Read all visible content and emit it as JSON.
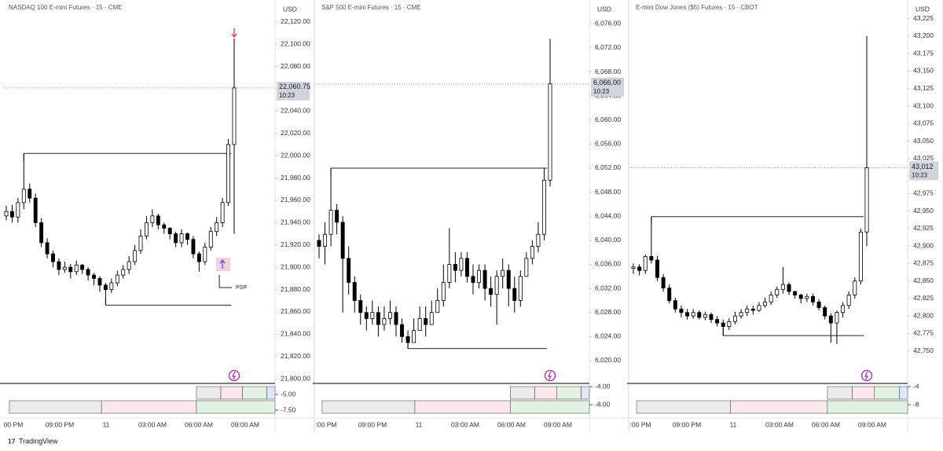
{
  "chart_data": [
    {
      "type": "candlestick",
      "title": "NASDAQ 100 E-mini Futures · 15 · CME",
      "currency": "USD",
      "ylim": [
        21798,
        22136
      ],
      "yticks": [
        {
          "value": 22120,
          "label": "22,120.00"
        },
        {
          "value": 22100,
          "label": "22,100.00"
        },
        {
          "value": 22080,
          "label": "22,080.00"
        },
        {
          "value": 22060,
          "label": "22,060.00"
        },
        {
          "value": 22040,
          "label": "22,040.00"
        },
        {
          "value": 22020,
          "label": "22,020.00"
        },
        {
          "value": 22000,
          "label": "22,000.00"
        },
        {
          "value": 21980,
          "label": "21,980.00"
        },
        {
          "value": 21960,
          "label": "21,960.00"
        },
        {
          "value": 21940,
          "label": "21,940.00"
        },
        {
          "value": 21920,
          "label": "21,920.00"
        },
        {
          "value": 21900,
          "label": "21,900.00"
        },
        {
          "value": 21880,
          "label": "21,880.00"
        },
        {
          "value": 21860,
          "label": "21,860.00"
        },
        {
          "value": 21840,
          "label": "21,840.00"
        },
        {
          "value": 21820,
          "label": "21,820.00"
        },
        {
          "value": 21800,
          "label": "21,800.00"
        }
      ],
      "open": [
        21946,
        21950,
        21945,
        21958,
        21970,
        21962,
        21940,
        21922,
        21912,
        21905,
        21898,
        21900,
        21896,
        21902,
        21898,
        21893,
        21890,
        21884,
        21880,
        21886,
        21893,
        21898,
        21905,
        21915,
        21928,
        21940,
        21946,
        21938,
        21935,
        21930,
        21922,
        21930,
        21925,
        21912,
        21905,
        21918,
        21932,
        21940,
        21958,
        22010
      ],
      "high": [
        21955,
        21956,
        21962,
        22002,
        21975,
        21966,
        21944,
        21926,
        21915,
        21908,
        21905,
        21903,
        21906,
        21903,
        21900,
        21895,
        21892,
        21886,
        21890,
        21897,
        21902,
        21910,
        21920,
        21934,
        21946,
        21952,
        21948,
        21940,
        21936,
        21932,
        21934,
        21931,
        21928,
        21914,
        21922,
        21936,
        21945,
        21962,
        22015,
        22105
      ],
      "low": [
        21942,
        21940,
        21940,
        21952,
        21958,
        21936,
        21918,
        21908,
        21900,
        21893,
        21895,
        21890,
        21893,
        21894,
        21888,
        21884,
        21878,
        21866,
        21877,
        21883,
        21890,
        21894,
        21902,
        21912,
        21925,
        21936,
        21934,
        21930,
        21925,
        21918,
        21918,
        21920,
        21908,
        21896,
        21902,
        21915,
        21928,
        21936,
        21955,
        21930
      ],
      "close": [
        21950,
        21945,
        21958,
        21970,
        21962,
        21940,
        21922,
        21912,
        21905,
        21898,
        21900,
        21896,
        21902,
        21898,
        21893,
        21890,
        21884,
        21880,
        21886,
        21893,
        21898,
        21905,
        21915,
        21928,
        21940,
        21946,
        21938,
        21935,
        21930,
        21922,
        21930,
        21925,
        21912,
        21905,
        21918,
        21932,
        21940,
        21958,
        22010,
        22060.75
      ],
      "levels": [
        22002,
        21866
      ],
      "last_price": {
        "value": 22060.75,
        "label": "22,060.75"
      },
      "countdown": "10:23",
      "annotation": "PSP",
      "sub_ylim": [
        -3.25,
        -8.5
      ],
      "sub_yticks": [
        {
          "value": -5,
          "label": "-5.00"
        },
        {
          "value": -7.5,
          "label": "-7.50"
        }
      ],
      "time_labels": [
        "00 PM",
        "09:00 PM",
        "11",
        "03:00 AM",
        "06:00 AM",
        "09:00 AM"
      ]
    },
    {
      "type": "candlestick",
      "title": "S&P 500 E-mini Futures · 15 · CME",
      "currency": "USD",
      "ylim": [
        6016.6,
        6079.3
      ],
      "yticks": [
        {
          "value": 6076,
          "label": "6,076.00"
        },
        {
          "value": 6072,
          "label": "6,072.00"
        },
        {
          "value": 6068,
          "label": "6,068.00"
        },
        {
          "value": 6064,
          "label": "6,064.00"
        },
        {
          "value": 6060,
          "label": "6,060.00"
        },
        {
          "value": 6056,
          "label": "6,056.00"
        },
        {
          "value": 6052,
          "label": "6,052.00"
        },
        {
          "value": 6048,
          "label": "6,048.00"
        },
        {
          "value": 6044,
          "label": "6,044.00"
        },
        {
          "value": 6040,
          "label": "6,040.00"
        },
        {
          "value": 6036,
          "label": "6,036.00"
        },
        {
          "value": 6032,
          "label": "6,032.00"
        },
        {
          "value": 6028,
          "label": "6,028.00"
        },
        {
          "value": 6024,
          "label": "6,024.00"
        },
        {
          "value": 6020,
          "label": "6,020.00"
        }
      ],
      "open": [
        6040,
        6039,
        6041,
        6045,
        6043,
        6037,
        6033,
        6030,
        6028,
        6027,
        6028,
        6026,
        6027,
        6028,
        6026,
        6024,
        6023,
        6025,
        6027,
        6026,
        6028,
        6030,
        6033,
        6036,
        6035,
        6037,
        6034,
        6033,
        6035,
        6032,
        6031,
        6034,
        6035,
        6032,
        6030,
        6034,
        6037,
        6039,
        6041,
        6050
      ],
      "high": [
        6041,
        6043,
        6052,
        6046,
        6044,
        6039,
        6034,
        6031,
        6029,
        6030,
        6029,
        6029,
        6030,
        6029,
        6027,
        6025,
        6027,
        6029,
        6029,
        6030,
        6032,
        6036,
        6042,
        6038,
        6038,
        6038,
        6036,
        6036,
        6036,
        6034,
        6035,
        6037,
        6036,
        6034,
        6035,
        6038,
        6040,
        6043,
        6052,
        6073.5
      ],
      "low": [
        6037,
        6036,
        6039,
        6041,
        6028,
        6031,
        6028,
        6026,
        6025,
        6026,
        6024,
        6025,
        6026,
        6024,
        6023,
        6022,
        6023,
        6025,
        6024,
        6026,
        6028,
        6029,
        6032,
        6033,
        6034,
        6033,
        6031,
        6032,
        6030,
        6029,
        6026,
        6032,
        6029,
        6028,
        6029,
        6034,
        6036,
        6038,
        6040,
        6049
      ],
      "close": [
        6039,
        6041,
        6045,
        6043,
        6037,
        6033,
        6030,
        6028,
        6027,
        6028,
        6026,
        6027,
        6028,
        6026,
        6024,
        6023,
        6025,
        6027,
        6026,
        6028,
        6030,
        6033,
        6036,
        6035,
        6037,
        6034,
        6033,
        6035,
        6032,
        6031,
        6034,
        6035,
        6032,
        6030,
        6034,
        6037,
        6039,
        6041,
        6050,
        6066
      ],
      "levels": [
        6052,
        6022
      ],
      "last_price": {
        "value": 6066,
        "label": "6,066.00"
      },
      "countdown": "10:23",
      "sub_ylim": [
        -3.3,
        -10.6
      ],
      "sub_yticks": [
        {
          "value": -4,
          "label": "-4.00"
        },
        {
          "value": -8,
          "label": "-8.00"
        }
      ],
      "time_labels": [
        ":00 PM",
        "09:00 PM",
        "11",
        "03:00 AM",
        "06:00 AM",
        "09:00 AM"
      ]
    },
    {
      "type": "candlestick",
      "title": "E-mini Dow Jones ($5) Futures · 15 · CBOT",
      "currency": "USD",
      "ylim": [
        42707,
        43246
      ],
      "yticks": [
        {
          "value": 43225,
          "label": "43,225"
        },
        {
          "value": 43200,
          "label": "43,200"
        },
        {
          "value": 43175,
          "label": "43,175"
        },
        {
          "value": 43150,
          "label": "43,150"
        },
        {
          "value": 43125,
          "label": "43,125"
        },
        {
          "value": 43100,
          "label": "43,100"
        },
        {
          "value": 43075,
          "label": "43,075"
        },
        {
          "value": 43050,
          "label": "43,050"
        },
        {
          "value": 43025,
          "label": "43,025"
        },
        {
          "value": 43000,
          "label": "43,000"
        },
        {
          "value": 42975,
          "label": "42,975"
        },
        {
          "value": 42950,
          "label": "42,950"
        },
        {
          "value": 42925,
          "label": "42,925"
        },
        {
          "value": 42900,
          "label": "42,900"
        },
        {
          "value": 42875,
          "label": "42,875"
        },
        {
          "value": 42850,
          "label": "42,850"
        },
        {
          "value": 42825,
          "label": "42,825"
        },
        {
          "value": 42800,
          "label": "42,800"
        },
        {
          "value": 42775,
          "label": "42,775"
        },
        {
          "value": 42750,
          "label": "42,750"
        }
      ],
      "open": [
        42868,
        42870,
        42865,
        42885,
        42880,
        42855,
        42840,
        42822,
        42810,
        42805,
        42800,
        42805,
        42798,
        42802,
        42795,
        42790,
        42785,
        42792,
        42800,
        42805,
        42810,
        42808,
        42815,
        42820,
        42830,
        42838,
        42845,
        42835,
        42830,
        42825,
        42828,
        42820,
        42812,
        42800,
        42790,
        42805,
        42815,
        42830,
        42850,
        42920
      ],
      "high": [
        42875,
        42874,
        42888,
        42942,
        42886,
        42860,
        42845,
        42826,
        42815,
        42810,
        42810,
        42808,
        42806,
        42805,
        42800,
        42795,
        42797,
        42806,
        42810,
        42815,
        42815,
        42820,
        42826,
        42835,
        42842,
        42870,
        42848,
        42836,
        42832,
        42832,
        42832,
        42824,
        42815,
        42804,
        42808,
        42820,
        42835,
        42855,
        42925,
        43200
      ],
      "low": [
        42860,
        42858,
        42860,
        42875,
        42850,
        42835,
        42818,
        42805,
        42798,
        42795,
        42796,
        42795,
        42794,
        42790,
        42785,
        42772,
        42780,
        42788,
        42796,
        42800,
        42802,
        42806,
        42812,
        42816,
        42826,
        42832,
        42830,
        42825,
        42818,
        42820,
        42815,
        42808,
        42795,
        42762,
        42760,
        42798,
        42810,
        42825,
        42845,
        42900
      ],
      "close": [
        42870,
        42865,
        42885,
        42880,
        42855,
        42840,
        42822,
        42810,
        42805,
        42800,
        42805,
        42798,
        42802,
        42795,
        42790,
        42785,
        42792,
        42800,
        42805,
        42810,
        42808,
        42815,
        42820,
        42830,
        42838,
        42845,
        42835,
        42830,
        42825,
        42828,
        42820,
        42812,
        42800,
        42790,
        42805,
        42815,
        42830,
        42850,
        42920,
        43012
      ],
      "levels": [
        42942,
        42772
      ],
      "last_price": {
        "value": 43012,
        "label": "43,012"
      },
      "countdown": "10:23",
      "sub_ylim": [
        -3.3,
        -10.6
      ],
      "sub_yticks": [
        {
          "value": -4,
          "label": "-4"
        },
        {
          "value": -8,
          "label": "-8"
        }
      ],
      "time_labels": [
        ":00 PM",
        "09:00 PM",
        "11",
        "03:00 AM",
        "06:00 AM",
        "09:00 AM"
      ]
    }
  ],
  "footer": {
    "brand": "TradingView"
  }
}
